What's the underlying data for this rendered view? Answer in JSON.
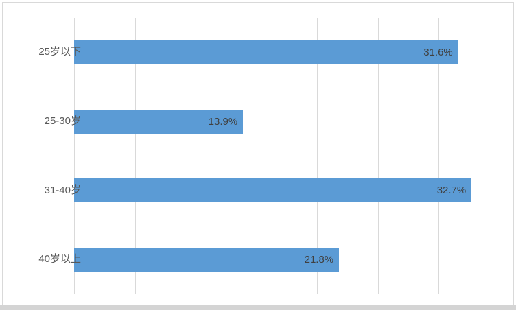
{
  "chart": {
    "background_color": "#ffffff",
    "frame_border_color": "#d9d9d9",
    "bottom_strip_color": "#d4d4d4"
  },
  "chart_data": {
    "type": "bar",
    "orientation": "horizontal",
    "title": "",
    "xlabel": "",
    "ylabel": "",
    "categories": [
      "25岁以下",
      "25-30岁",
      "31-40岁",
      "40岁以上"
    ],
    "values": [
      31.6,
      13.9,
      32.7,
      21.8
    ],
    "data_labels": [
      "31.6%",
      "13.9%",
      "32.7%",
      "21.8%"
    ],
    "data_label_position": "inside-end",
    "xlim": [
      0,
      35
    ],
    "gridline_interval": 5,
    "grid": true,
    "axis_tick_labels_visible": false,
    "legend": false,
    "bar_color": "#5b9bd5",
    "data_label_color": "#404040",
    "category_label_color": "#595959",
    "gridline_color": "#d9d9d9"
  }
}
